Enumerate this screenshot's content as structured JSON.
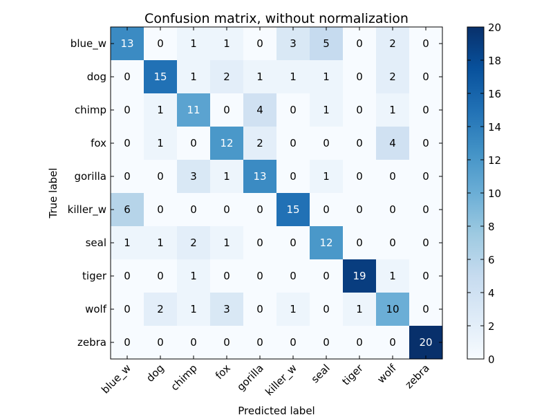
{
  "chart_data": {
    "type": "heatmap",
    "title": "Confusion matrix, without normalization",
    "xlabel": "Predicted label",
    "ylabel": "True label",
    "row_labels": [
      "blue_w",
      "dog",
      "chimp",
      "fox",
      "gorilla",
      "killer_w",
      "seal",
      "tiger",
      "wolf",
      "zebra"
    ],
    "col_labels": [
      "blue_w",
      "dog",
      "chimp",
      "fox",
      "gorilla",
      "killer_w",
      "seal",
      "tiger",
      "wolf",
      "zebra"
    ],
    "values": [
      [
        13,
        0,
        1,
        1,
        0,
        3,
        5,
        0,
        2,
        0
      ],
      [
        0,
        15,
        1,
        2,
        1,
        1,
        1,
        0,
        2,
        0
      ],
      [
        0,
        1,
        11,
        0,
        4,
        0,
        1,
        0,
        1,
        0
      ],
      [
        0,
        1,
        0,
        12,
        2,
        0,
        0,
        0,
        4,
        0
      ],
      [
        0,
        0,
        3,
        1,
        13,
        0,
        1,
        0,
        0,
        0
      ],
      [
        6,
        0,
        0,
        0,
        0,
        15,
        0,
        0,
        0,
        0
      ],
      [
        1,
        1,
        2,
        1,
        0,
        0,
        12,
        0,
        0,
        0
      ],
      [
        0,
        0,
        1,
        0,
        0,
        0,
        0,
        19,
        1,
        0
      ],
      [
        0,
        2,
        1,
        3,
        0,
        1,
        0,
        1,
        10,
        0
      ],
      [
        0,
        0,
        0,
        0,
        0,
        0,
        0,
        0,
        0,
        20
      ]
    ],
    "colorbar": {
      "min": 0,
      "max": 20,
      "ticks": [
        0,
        2,
        4,
        6,
        8,
        10,
        12,
        14,
        16,
        18,
        20
      ],
      "colormap": "Blues"
    },
    "text_threshold": 10
  }
}
